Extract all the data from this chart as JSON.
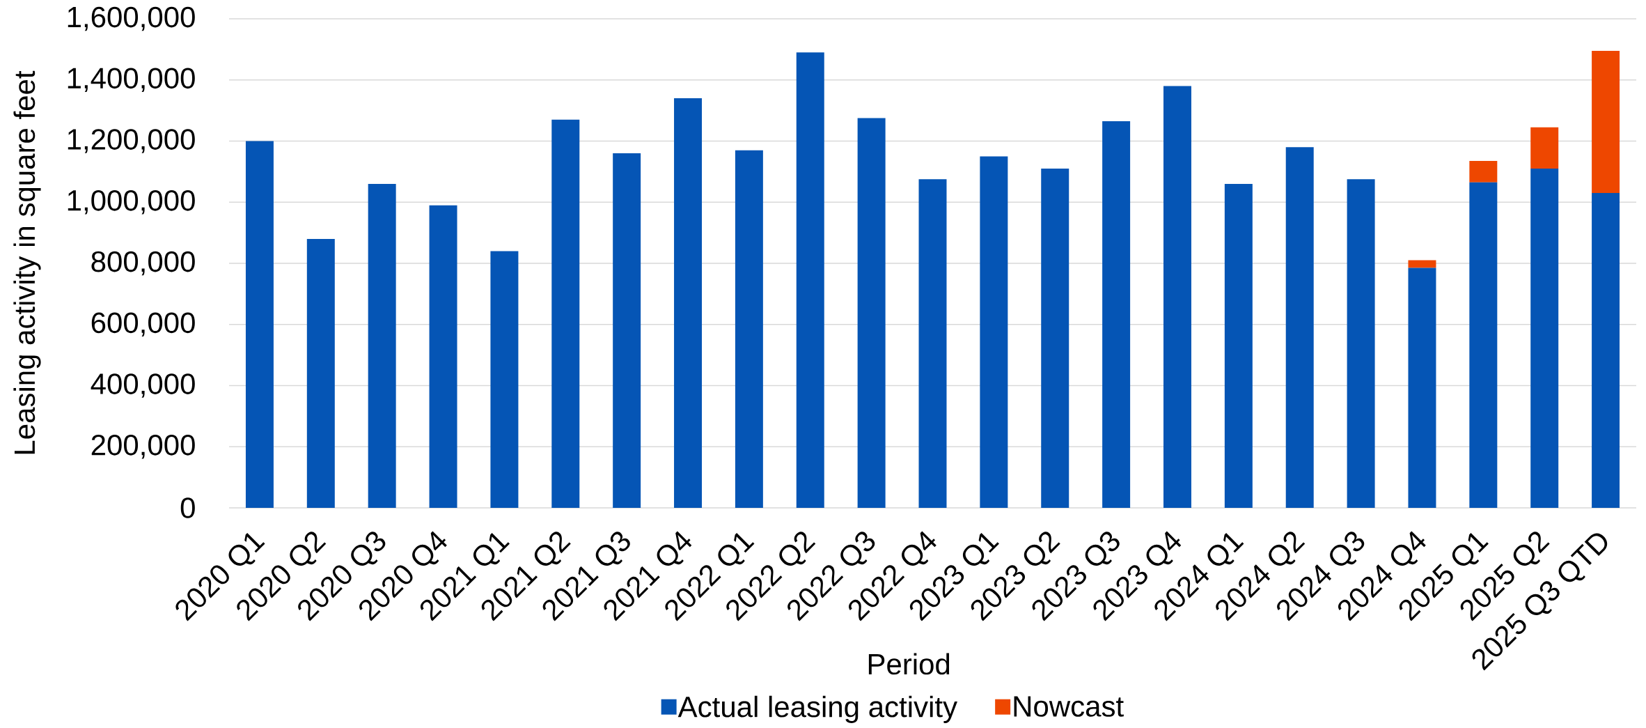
{
  "chart_data": {
    "type": "bar",
    "stacked": true,
    "xlabel": "Period",
    "ylabel": "Leasing activity in square feet",
    "categories": [
      "2020 Q1",
      "2020 Q2",
      "2020 Q3",
      "2020 Q4",
      "2021 Q1",
      "2021 Q2",
      "2021 Q3",
      "2021 Q4",
      "2022 Q1",
      "2022 Q2",
      "2022 Q3",
      "2022 Q4",
      "2023 Q1",
      "2023 Q2",
      "2023 Q3",
      "2023 Q4",
      "2024 Q1",
      "2024 Q2",
      "2024 Q3",
      "2024 Q4",
      "2025 Q1",
      "2025 Q2",
      "2025 Q3 QTD"
    ],
    "series": [
      {
        "name": "Actual leasing activity",
        "color": "#0555b5",
        "values": [
          1200000,
          880000,
          1060000,
          990000,
          840000,
          1270000,
          1160000,
          1340000,
          1170000,
          1490000,
          1275000,
          1075000,
          1150000,
          1110000,
          1265000,
          1380000,
          1060000,
          1180000,
          1075000,
          785000,
          1065000,
          1110000,
          1030000
        ]
      },
      {
        "name": "Nowcast",
        "color": "#ee4700",
        "values": [
          null,
          null,
          null,
          null,
          null,
          null,
          null,
          null,
          null,
          null,
          null,
          null,
          null,
          null,
          null,
          null,
          null,
          null,
          null,
          25000,
          70000,
          135000,
          465000
        ]
      }
    ],
    "ylim": [
      0,
      1600000
    ],
    "yticks": [
      0,
      {
        "value": 200000,
        "label": "200,000"
      },
      {
        "value": 400000,
        "label": "400,000"
      },
      {
        "value": 600000,
        "label": "600,000"
      },
      {
        "value": 800000,
        "label": "800,000"
      },
      {
        "value": 1000000,
        "label": "1,000,000"
      },
      {
        "value": 1200000,
        "label": "1,200,000"
      },
      {
        "value": 1400000,
        "label": "1,400,000"
      },
      {
        "value": 1600000,
        "label": "1,600,000"
      }
    ],
    "grid": "y",
    "legend": "bottom"
  }
}
